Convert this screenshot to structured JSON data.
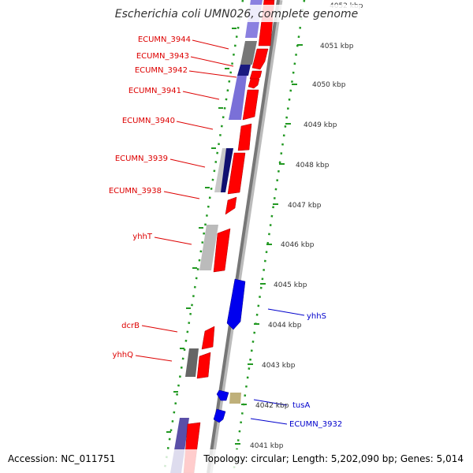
{
  "title": "Escherichia coli UMN026, complete genome",
  "footer": {
    "accession": "Accession: NC_011751",
    "topology": "Topology: circular; Length: 5,202,090 bp; Genes: 5,014"
  },
  "colors": {
    "reverse_label": "#dd0000",
    "forward_label": "#0000cc",
    "reverse_gene": "#ff0000",
    "forward_gene": "#0000ee",
    "tick_dots": "#229922"
  },
  "scale_ticks": [
    "4052 kbp",
    "4051 kbp",
    "4050 kbp",
    "4049 kbp",
    "4048 kbp",
    "4047 kbp",
    "4046 kbp",
    "4045 kbp",
    "4044 kbp",
    "4043 kbp",
    "4042 kbp",
    "4041 kbp"
  ],
  "gene_labels_left": [
    "ECUMN_3944",
    "ECUMN_3943",
    "ECUMN_3942",
    "ECUMN_3941",
    "ECUMN_3940",
    "ECUMN_3939",
    "ECUMN_3938",
    "yhhT",
    "dcrB",
    "yhhQ"
  ],
  "gene_labels_right": [
    "yhhS",
    "tusA",
    "ECUMN_3932"
  ]
}
